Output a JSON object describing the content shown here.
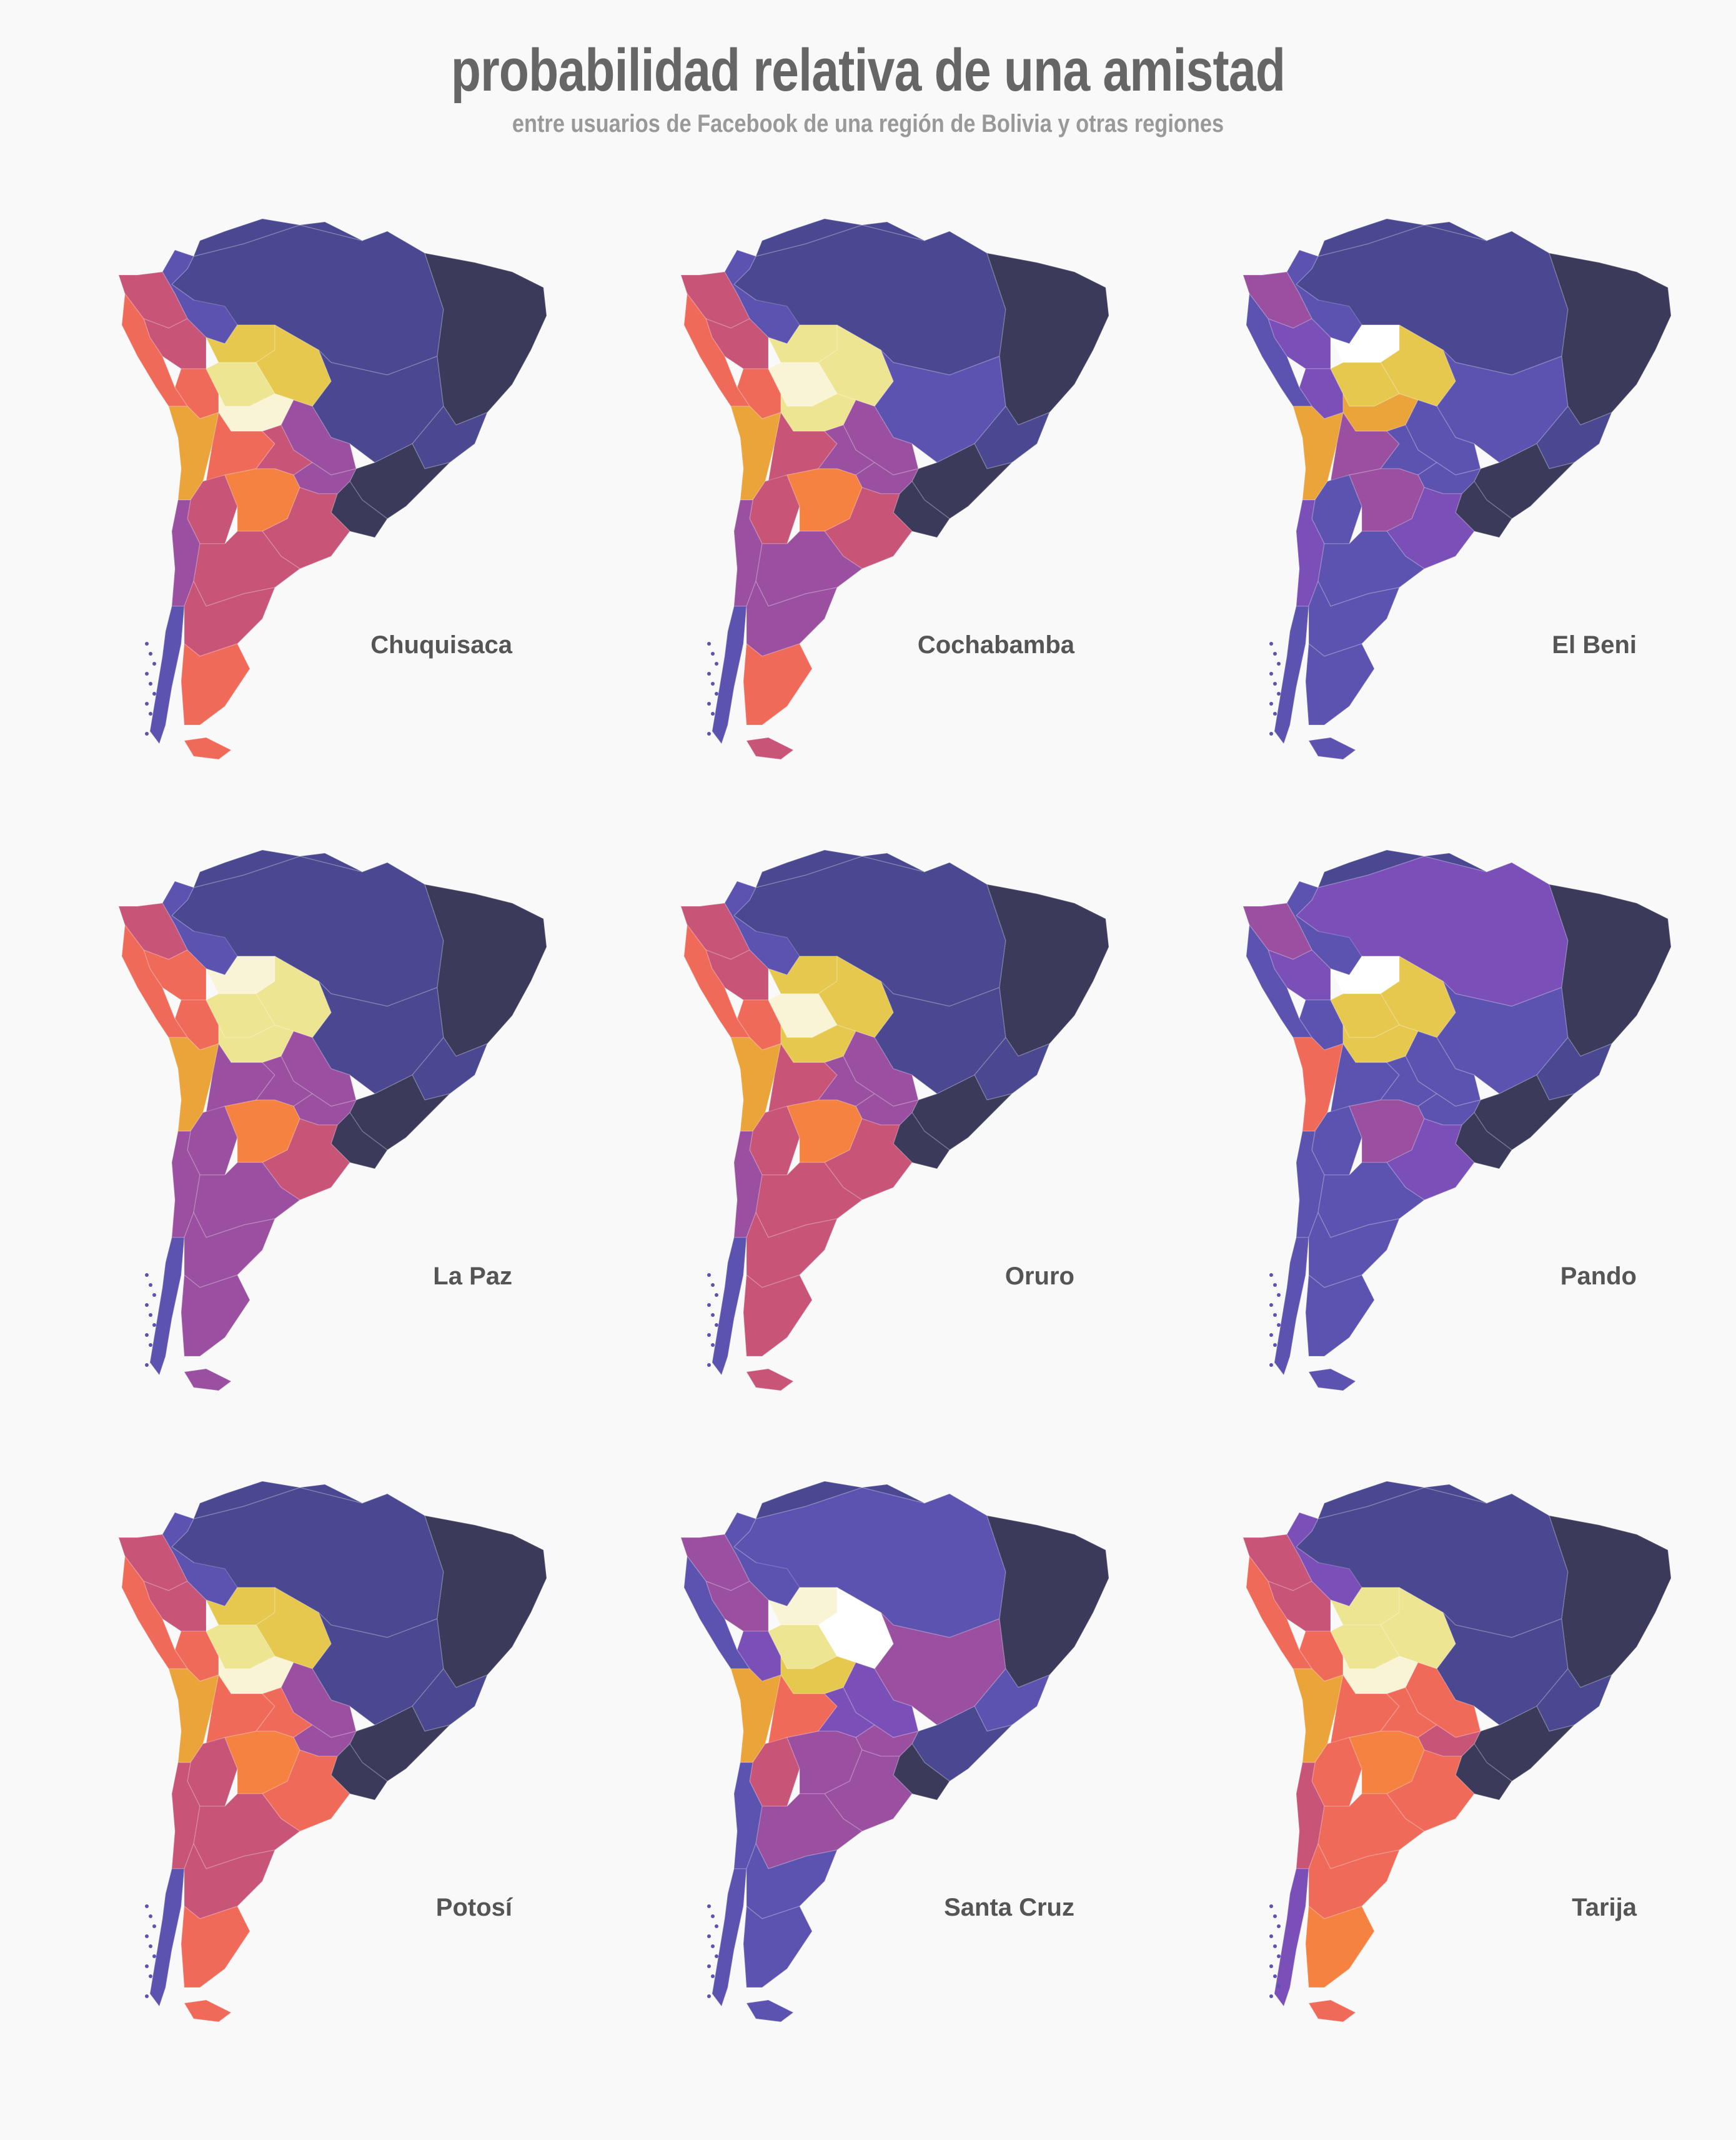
{
  "title": "probabilidad relativa de una amistad",
  "subtitle": "entre usuarios de Facebook de una región de Bolivia y otras regiones",
  "palette": {
    "darkest": "#3c3a5a",
    "dark": "#4a4890",
    "indigo": "#5c52b0",
    "violet": "#7a4fb8",
    "purple": "#9a4fa0",
    "magenta": "#c85478",
    "coral": "#f06a5a",
    "orange": "#f58240",
    "amber": "#eaa43a",
    "gold": "#e6c84e",
    "yellow": "#eee592",
    "cream": "#faf4d6",
    "white": "#ffffff"
  },
  "maps": [
    {
      "label": "Chuquisaca",
      "colors": {
        "brazil_north": "dark",
        "brazil_central": "dark",
        "brazil_northeast": "darkest",
        "brazil_south": "darkest",
        "brazil_small": "dark",
        "venezuela": "dark",
        "colombia": "indigo",
        "guianas": "dark",
        "ecuador": "magenta",
        "peru_north": "magenta",
        "peru_south": "coral",
        "peru_coast": "coral",
        "bolivia_north": "gold",
        "bolivia_mid": "yellow",
        "bolivia_south": "cream",
        "bolivia_east": "gold",
        "paraguay": "purple",
        "uruguay": "darkest",
        "chile_north": "amber",
        "chile_mid": "purple",
        "chile_south": "indigo",
        "argentina_nw": "coral",
        "argentina_north": "magenta",
        "argentina_ne": "purple",
        "argentina_center": "orange",
        "argentina_cuyo": "magenta",
        "argentina_baires": "magenta",
        "patagonia_north": "magenta",
        "patagonia_mid": "magenta",
        "patagonia_south": "coral",
        "tierra_fuego": "coral"
      }
    },
    {
      "label": "Cochabamba",
      "colors": {
        "brazil_north": "dark",
        "brazil_central": "indigo",
        "brazil_northeast": "darkest",
        "brazil_south": "darkest",
        "brazil_small": "dark",
        "venezuela": "dark",
        "colombia": "indigo",
        "guianas": "dark",
        "ecuador": "magenta",
        "peru_north": "magenta",
        "peru_south": "coral",
        "peru_coast": "coral",
        "bolivia_north": "yellow",
        "bolivia_mid": "cream",
        "bolivia_south": "yellow",
        "bolivia_east": "yellow",
        "paraguay": "purple",
        "uruguay": "darkest",
        "chile_north": "amber",
        "chile_mid": "purple",
        "chile_south": "indigo",
        "argentina_nw": "magenta",
        "argentina_north": "purple",
        "argentina_ne": "purple",
        "argentina_center": "orange",
        "argentina_cuyo": "magenta",
        "argentina_baires": "magenta",
        "patagonia_north": "purple",
        "patagonia_mid": "purple",
        "patagonia_south": "coral",
        "tierra_fuego": "magenta"
      }
    },
    {
      "label": "El Beni",
      "colors": {
        "brazil_north": "dark",
        "brazil_central": "indigo",
        "brazil_northeast": "darkest",
        "brazil_south": "darkest",
        "brazil_small": "dark",
        "venezuela": "dark",
        "colombia": "indigo",
        "guianas": "dark",
        "ecuador": "purple",
        "peru_north": "violet",
        "peru_south": "violet",
        "peru_coast": "indigo",
        "bolivia_north": "white",
        "bolivia_mid": "gold",
        "bolivia_south": "amber",
        "bolivia_east": "gold",
        "paraguay": "indigo",
        "uruguay": "darkest",
        "chile_north": "amber",
        "chile_mid": "violet",
        "chile_south": "indigo",
        "argentina_nw": "purple",
        "argentina_north": "indigo",
        "argentina_ne": "indigo",
        "argentina_center": "purple",
        "argentina_cuyo": "indigo",
        "argentina_baires": "violet",
        "patagonia_north": "indigo",
        "patagonia_mid": "indigo",
        "patagonia_south": "indigo",
        "tierra_fuego": "indigo"
      }
    },
    {
      "label": "La Paz",
      "colors": {
        "brazil_north": "dark",
        "brazil_central": "dark",
        "brazil_northeast": "darkest",
        "brazil_south": "darkest",
        "brazil_small": "dark",
        "venezuela": "dark",
        "colombia": "indigo",
        "guianas": "dark",
        "ecuador": "magenta",
        "peru_north": "coral",
        "peru_south": "coral",
        "peru_coast": "coral",
        "bolivia_north": "cream",
        "bolivia_mid": "yellow",
        "bolivia_south": "yellow",
        "bolivia_east": "yellow",
        "paraguay": "purple",
        "uruguay": "darkest",
        "chile_north": "amber",
        "chile_mid": "purple",
        "chile_south": "indigo",
        "argentina_nw": "purple",
        "argentina_north": "purple",
        "argentina_ne": "purple",
        "argentina_center": "orange",
        "argentina_cuyo": "purple",
        "argentina_baires": "magenta",
        "patagonia_north": "purple",
        "patagonia_mid": "purple",
        "patagonia_south": "purple",
        "tierra_fuego": "purple"
      }
    },
    {
      "label": "Oruro",
      "colors": {
        "brazil_north": "dark",
        "brazil_central": "dark",
        "brazil_northeast": "darkest",
        "brazil_south": "darkest",
        "brazil_small": "dark",
        "venezuela": "dark",
        "colombia": "indigo",
        "guianas": "dark",
        "ecuador": "magenta",
        "peru_north": "magenta",
        "peru_south": "coral",
        "peru_coast": "coral",
        "bolivia_north": "gold",
        "bolivia_mid": "cream",
        "bolivia_south": "gold",
        "bolivia_east": "gold",
        "paraguay": "purple",
        "uruguay": "darkest",
        "chile_north": "amber",
        "chile_mid": "purple",
        "chile_south": "indigo",
        "argentina_nw": "magenta",
        "argentina_north": "purple",
        "argentina_ne": "purple",
        "argentina_center": "orange",
        "argentina_cuyo": "magenta",
        "argentina_baires": "magenta",
        "patagonia_north": "magenta",
        "patagonia_mid": "magenta",
        "patagonia_south": "magenta",
        "tierra_fuego": "magenta"
      }
    },
    {
      "label": "Pando",
      "colors": {
        "brazil_north": "violet",
        "brazil_central": "indigo",
        "brazil_northeast": "darkest",
        "brazil_south": "darkest",
        "brazil_small": "dark",
        "venezuela": "dark",
        "colombia": "indigo",
        "guianas": "dark",
        "ecuador": "purple",
        "peru_north": "violet",
        "peru_south": "indigo",
        "peru_coast": "indigo",
        "bolivia_north": "white",
        "bolivia_mid": "gold",
        "bolivia_south": "gold",
        "bolivia_east": "gold",
        "paraguay": "indigo",
        "uruguay": "darkest",
        "chile_north": "coral",
        "chile_mid": "indigo",
        "chile_south": "indigo",
        "argentina_nw": "indigo",
        "argentina_north": "indigo",
        "argentina_ne": "indigo",
        "argentina_center": "purple",
        "argentina_cuyo": "indigo",
        "argentina_baires": "violet",
        "patagonia_north": "indigo",
        "patagonia_mid": "indigo",
        "patagonia_south": "indigo",
        "tierra_fuego": "indigo"
      }
    },
    {
      "label": "Potosí",
      "colors": {
        "brazil_north": "dark",
        "brazil_central": "dark",
        "brazil_northeast": "darkest",
        "brazil_south": "darkest",
        "brazil_small": "dark",
        "venezuela": "dark",
        "colombia": "indigo",
        "guianas": "dark",
        "ecuador": "magenta",
        "peru_north": "magenta",
        "peru_south": "coral",
        "peru_coast": "coral",
        "bolivia_north": "gold",
        "bolivia_mid": "yellow",
        "bolivia_south": "cream",
        "bolivia_east": "gold",
        "paraguay": "purple",
        "uruguay": "darkest",
        "chile_north": "amber",
        "chile_mid": "magenta",
        "chile_south": "indigo",
        "argentina_nw": "coral",
        "argentina_north": "coral",
        "argentina_ne": "purple",
        "argentina_center": "orange",
        "argentina_cuyo": "magenta",
        "argentina_baires": "coral",
        "patagonia_north": "magenta",
        "patagonia_mid": "magenta",
        "patagonia_south": "coral",
        "tierra_fuego": "coral"
      }
    },
    {
      "label": "Santa Cruz",
      "colors": {
        "brazil_north": "indigo",
        "brazil_central": "purple",
        "brazil_northeast": "darkest",
        "brazil_south": "dark",
        "brazil_small": "indigo",
        "venezuela": "dark",
        "colombia": "indigo",
        "guianas": "dark",
        "ecuador": "purple",
        "peru_north": "purple",
        "peru_south": "violet",
        "peru_coast": "indigo",
        "bolivia_north": "cream",
        "bolivia_mid": "yellow",
        "bolivia_south": "gold",
        "bolivia_east": "white",
        "paraguay": "violet",
        "uruguay": "darkest",
        "chile_north": "amber",
        "chile_mid": "indigo",
        "chile_south": "indigo",
        "argentina_nw": "coral",
        "argentina_north": "violet",
        "argentina_ne": "purple",
        "argentina_center": "purple",
        "argentina_cuyo": "magenta",
        "argentina_baires": "purple",
        "patagonia_north": "purple",
        "patagonia_mid": "indigo",
        "patagonia_south": "indigo",
        "tierra_fuego": "indigo"
      }
    },
    {
      "label": "Tarija",
      "colors": {
        "brazil_north": "dark",
        "brazil_central": "dark",
        "brazil_northeast": "darkest",
        "brazil_south": "darkest",
        "brazil_small": "dark",
        "venezuela": "dark",
        "colombia": "violet",
        "guianas": "dark",
        "ecuador": "magenta",
        "peru_north": "magenta",
        "peru_south": "coral",
        "peru_coast": "coral",
        "bolivia_north": "yellow",
        "bolivia_mid": "yellow",
        "bolivia_south": "cream",
        "bolivia_east": "yellow",
        "paraguay": "coral",
        "uruguay": "darkest",
        "chile_north": "amber",
        "chile_mid": "magenta",
        "chile_south": "violet",
        "argentina_nw": "coral",
        "argentina_north": "coral",
        "argentina_ne": "magenta",
        "argentina_center": "orange",
        "argentina_cuyo": "coral",
        "argentina_baires": "coral",
        "patagonia_north": "coral",
        "patagonia_mid": "coral",
        "patagonia_south": "orange",
        "tierra_fuego": "coral"
      }
    }
  ]
}
